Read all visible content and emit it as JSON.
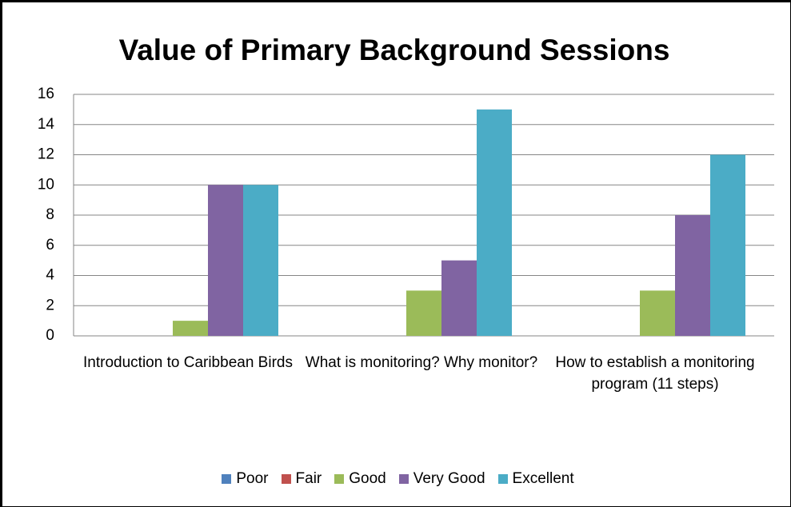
{
  "chart_data": {
    "type": "bar",
    "title": "Value of Primary Background Sessions",
    "categories": [
      "Introduction to Caribbean Birds",
      "What is monitoring? Why monitor?",
      "How to establish a monitoring program (11 steps)"
    ],
    "series": [
      {
        "name": "Poor",
        "color": "#4f81bd",
        "values": [
          0,
          0,
          0
        ]
      },
      {
        "name": "Fair",
        "color": "#c0504d",
        "values": [
          0,
          0,
          0
        ]
      },
      {
        "name": "Good",
        "color": "#9bbb59",
        "values": [
          1,
          3,
          3
        ]
      },
      {
        "name": "Very Good",
        "color": "#8064a2",
        "values": [
          10,
          5,
          8
        ]
      },
      {
        "name": "Excellent",
        "color": "#4bacc6",
        "values": [
          10,
          15,
          12
        ]
      }
    ],
    "ylim": [
      0,
      16
    ],
    "yticks": [
      0,
      2,
      4,
      6,
      8,
      10,
      12,
      14,
      16
    ],
    "grid": true,
    "legend": "bottom"
  }
}
